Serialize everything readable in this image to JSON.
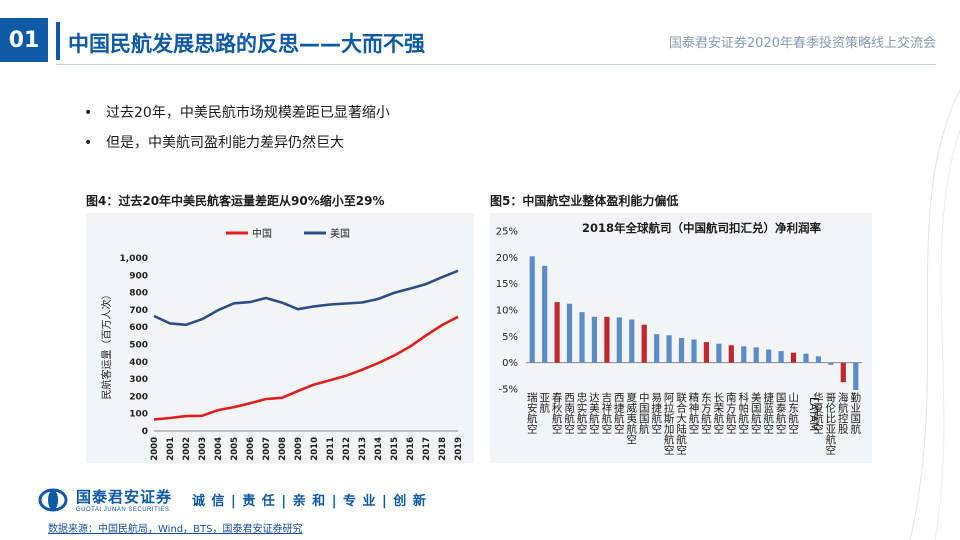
{
  "header": {
    "slide_number": "01",
    "title": "中国民航发展思路的反思——大而不强",
    "conference": "国泰君安证券2020年春季投资策略线上交流会"
  },
  "bullets": [
    "过去20年，中美民航市场规模差距已显著缩小",
    "但是，中美航司盈利能力差异仍然巨大"
  ],
  "figure4": {
    "caption": "图4：过去20年中美民航客运量差距从90%缩小至29%"
  },
  "figure5": {
    "caption": "图5：中国航空业整体盈利能力偏低"
  },
  "footer": {
    "logo_text": "国泰君安证券",
    "logo_sub": "GUOTAI JUNAN SECURITIES",
    "slogan": "诚 信 | 责 任 | 亲 和 | 专 业 | 创 新",
    "source": "数据来源：中国民航局，Wind，BTS，国泰君安证券研究"
  },
  "colors": {
    "brand": "#0e5aa7",
    "china": "#e01f1f",
    "usa": "#2b4f82",
    "bar_blue": "#5b8cc6",
    "bar_red": "#c0282d"
  },
  "chart_data": [
    {
      "type": "line",
      "title": "",
      "ylabel": "民航客运量（百万人次）",
      "xlabel": "",
      "x": [
        "2000",
        "2001",
        "2002",
        "2003",
        "2004",
        "2005",
        "2006",
        "2007",
        "2008",
        "2009",
        "2010",
        "2011",
        "2012",
        "2013",
        "2014",
        "2015",
        "2016",
        "2017",
        "2018",
        "2019"
      ],
      "ylim": [
        0,
        1000
      ],
      "yticks": [
        "0",
        "100",
        "200",
        "300",
        "400",
        "500",
        "600",
        "700",
        "800",
        "900",
        "1,000"
      ],
      "legend_position": "top",
      "series": [
        {
          "name": "中国",
          "color": "#e01f1f",
          "values": [
            67,
            75,
            86,
            88,
            121,
            138,
            160,
            185,
            192,
            231,
            268,
            293,
            319,
            354,
            392,
            436,
            488,
            552,
            612,
            660
          ]
        },
        {
          "name": "美国",
          "color": "#2b4f82",
          "values": [
            665,
            622,
            614,
            646,
            698,
            738,
            745,
            769,
            742,
            704,
            720,
            731,
            737,
            743,
            763,
            798,
            823,
            849,
            889,
            926
          ]
        }
      ]
    },
    {
      "type": "bar",
      "title": "2018年全球航司（中国航司扣汇兑）净利润率",
      "xlabel": "",
      "ylabel": "",
      "ylim": [
        -0.05,
        0.25
      ],
      "yticks": [
        "-5%",
        "0%",
        "5%",
        "10%",
        "15%",
        "20%",
        "25%"
      ],
      "grid": false,
      "categories": [
        "瑞安航空",
        "亚航",
        "春秋航空",
        "西南航空",
        "忠实航空",
        "达美航空",
        "吉祥航空",
        "西捷航空",
        "夏威夷航空",
        "中国国航",
        "易捷航空",
        "阿拉斯加航空",
        "联合大陆航空",
        "精神航空",
        "东方航空",
        "长荣航空",
        "南方航空",
        "科帕航空",
        "美国航空",
        "捷蓝航空",
        "国泰航空",
        "山东航空",
        "LATAM",
        "华夏航空",
        "哥伦比亚航空",
        "海航控股",
        "勤业国航"
      ],
      "values": [
        0.202,
        0.184,
        0.115,
        0.112,
        0.096,
        0.087,
        0.087,
        0.086,
        0.082,
        0.072,
        0.054,
        0.052,
        0.047,
        0.044,
        0.039,
        0.036,
        0.033,
        0.031,
        0.029,
        0.025,
        0.022,
        0.019,
        0.017,
        0.012,
        -0.004,
        -0.037,
        -0.052
      ],
      "highlight": [
        false,
        false,
        true,
        false,
        false,
        false,
        true,
        false,
        false,
        true,
        false,
        false,
        false,
        false,
        true,
        false,
        true,
        false,
        false,
        false,
        false,
        true,
        false,
        false,
        false,
        true,
        false
      ]
    }
  ]
}
